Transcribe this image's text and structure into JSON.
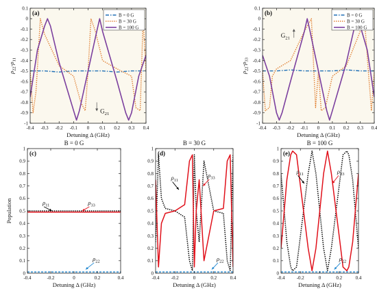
{
  "colors": {
    "b0": "#1f6fb5",
    "b30": "#e07b2a",
    "b100": "#7b3f9e",
    "rho11": "#000000",
    "rho22": "#1f87d0",
    "rho33": "#e0101a",
    "panel_bg": "#fbf8ee"
  },
  "chart_data": [
    {
      "type": "line",
      "panel_label": "(a)",
      "xlabel": "Detuning Δ (GHz)",
      "ylabel": "ρ22-ρ11",
      "xlim": [
        -0.4,
        0.4
      ],
      "ylim": [
        -1,
        0.1
      ],
      "xticks": [
        "-0.4",
        "-0.3",
        "-0.2",
        "-0.1",
        "0",
        "0.1",
        "0.2",
        "0.3",
        "0.4"
      ],
      "yticks": [
        "0.1",
        "0",
        "-0.1",
        "-0.2",
        "-0.3",
        "-0.4",
        "-0.5",
        "-0.6",
        "-0.7",
        "-0.8",
        "-0.9",
        "-1"
      ],
      "legend": [
        "B = 0 G",
        "B = 30 G",
        "B = 100 G"
      ],
      "legend_position": "top-right",
      "annotation": "G21",
      "series": [
        {
          "name": "B = 0 G",
          "x": [
            -0.4,
            -0.3,
            -0.2,
            -0.1,
            0,
            0.1,
            0.2,
            0.3,
            0.4
          ],
          "y": [
            -0.5,
            -0.5,
            -0.51,
            -0.5,
            -0.5,
            -0.5,
            -0.51,
            -0.5,
            -0.5
          ]
        },
        {
          "name": "B = 30 G",
          "x": [
            -0.4,
            -0.38,
            -0.36,
            -0.33,
            -0.3,
            -0.2,
            -0.1,
            -0.05,
            -0.02,
            0,
            0.02,
            0.05,
            0.1,
            0.2,
            0.3,
            0.33,
            0.36,
            0.38,
            0.4
          ],
          "y": [
            -0.5,
            -0.9,
            -0.7,
            0,
            -0.15,
            -0.45,
            -0.55,
            -0.8,
            -0.88,
            -0.5,
            0,
            -0.12,
            -0.4,
            -0.48,
            -0.55,
            -0.85,
            -0.88,
            0,
            -0.5
          ]
        },
        {
          "name": "B = 100 G",
          "x": [
            -0.4,
            -0.35,
            -0.3,
            -0.28,
            -0.26,
            -0.2,
            -0.1,
            -0.08,
            -0.06,
            0,
            0.06,
            0.08,
            0.1,
            0.2,
            0.26,
            0.28,
            0.3,
            0.35,
            0.4
          ],
          "y": [
            -0.75,
            -0.3,
            -0.07,
            0,
            -0.07,
            -0.42,
            -0.88,
            -0.97,
            -0.88,
            -0.5,
            -0.12,
            0,
            -0.12,
            -0.6,
            -0.9,
            -0.97,
            -0.9,
            -0.55,
            -0.35
          ]
        }
      ]
    },
    {
      "type": "line",
      "panel_label": "(b)",
      "xlabel": "Detuning Δ (GHz)",
      "ylabel": "ρ22-ρ33",
      "xlim": [
        -0.4,
        0.4
      ],
      "ylim": [
        -1,
        0.1
      ],
      "xticks": [
        "-0.4",
        "-0.3",
        "-0.2",
        "-0.1",
        "0",
        "0.1",
        "0.2",
        "0.3",
        "0.4"
      ],
      "yticks": [
        "0.1",
        "0",
        "-0.1",
        "-0.2",
        "-0.3",
        "-0.4",
        "-0.5",
        "-0.6",
        "-0.7",
        "-0.8",
        "-0.9",
        "-1"
      ],
      "legend": [
        "B = 0 G",
        "B = 30 G",
        "B = 100 G"
      ],
      "legend_position": "top-right",
      "annotation": "G21",
      "series": [
        {
          "name": "B = 0 G",
          "x": [
            -0.4,
            -0.3,
            -0.2,
            -0.1,
            0,
            0.1,
            0.2,
            0.3,
            0.4
          ],
          "y": [
            -0.5,
            -0.5,
            -0.49,
            -0.5,
            -0.5,
            -0.5,
            -0.49,
            -0.5,
            -0.5
          ]
        },
        {
          "name": "B = 30 G",
          "x": [
            -0.4,
            -0.38,
            -0.35,
            -0.33,
            -0.3,
            -0.2,
            -0.1,
            -0.05,
            -0.02,
            0,
            0.02,
            0.05,
            0.1,
            0.2,
            0.3,
            0.33,
            0.36,
            0.38,
            0.4
          ],
          "y": [
            -0.5,
            -0.88,
            -0.85,
            -0.55,
            -0.48,
            -0.4,
            -0.12,
            0,
            -0.85,
            -0.5,
            -0.88,
            -0.85,
            -0.55,
            -0.45,
            -0.12,
            0,
            -0.55,
            -0.88,
            -0.5
          ]
        },
        {
          "name": "B = 100 G",
          "x": [
            -0.4,
            -0.35,
            -0.3,
            -0.28,
            -0.26,
            -0.2,
            -0.1,
            -0.08,
            -0.06,
            0,
            0.06,
            0.08,
            0.1,
            0.2,
            0.26,
            0.28,
            0.3,
            0.35,
            0.4
          ],
          "y": [
            -0.35,
            -0.55,
            -0.9,
            -0.97,
            -0.9,
            -0.6,
            -0.12,
            0,
            -0.12,
            -0.5,
            -0.88,
            -0.97,
            -0.88,
            -0.42,
            -0.07,
            0,
            -0.07,
            -0.3,
            -0.75
          ]
        }
      ]
    },
    {
      "type": "line",
      "panel_label": "(c)",
      "title": "B = 0 G",
      "xlabel": "Detuning Δ (GHz)",
      "ylabel": "Population",
      "xlim": [
        -0.4,
        0.4
      ],
      "ylim": [
        0,
        1
      ],
      "xticks": [
        "-0.4",
        "-0.2",
        "0",
        "0.2",
        "0.4"
      ],
      "yticks": [
        "0",
        "0.1",
        "0.2",
        "0.3",
        "0.4",
        "0.5",
        "0.6",
        "0.7",
        "0.8",
        "0.9",
        "1"
      ],
      "series": [
        {
          "name": "ρ11",
          "x": [
            -0.4,
            -0.2,
            0,
            0.2,
            0.4
          ],
          "y": [
            0.5,
            0.5,
            0.5,
            0.5,
            0.5
          ]
        },
        {
          "name": "ρ22",
          "x": [
            -0.4,
            -0.2,
            0,
            0.2,
            0.4
          ],
          "y": [
            0.01,
            0.01,
            0.01,
            0.01,
            0.01
          ]
        },
        {
          "name": "ρ33",
          "x": [
            -0.4,
            -0.2,
            0,
            0.2,
            0.4
          ],
          "y": [
            0.49,
            0.49,
            0.49,
            0.49,
            0.49
          ]
        }
      ]
    },
    {
      "type": "line",
      "panel_label": "(d)",
      "title": "B = 30 G",
      "xlabel": "Detuning Δ (GHz)",
      "ylabel": "",
      "xlim": [
        -0.4,
        0.4
      ],
      "ylim": [
        0,
        1
      ],
      "xticks": [
        "-0.4",
        "-0.2",
        "0",
        "0.2",
        "0.4"
      ],
      "yticks": [
        "0",
        "0.1",
        "0.2",
        "0.3",
        "0.4",
        "0.5",
        "0.6",
        "0.7",
        "0.8",
        "0.9",
        "1"
      ],
      "series": [
        {
          "name": "ρ11",
          "x": [
            -0.4,
            -0.37,
            -0.34,
            -0.3,
            -0.2,
            -0.1,
            -0.05,
            -0.02,
            0,
            0.02,
            0.05,
            0.1,
            0.2,
            0.3,
            0.34,
            0.37,
            0.4
          ],
          "y": [
            0.25,
            0.95,
            0.6,
            0.52,
            0.5,
            0.45,
            0.1,
            0.02,
            0.95,
            0.5,
            0.25,
            0.9,
            0.5,
            0.48,
            0.1,
            0.02,
            0.95
          ]
        },
        {
          "name": "ρ22",
          "x": [
            -0.4,
            -0.2,
            0,
            0.2,
            0.4
          ],
          "y": [
            0.01,
            0.01,
            0.01,
            0.01,
            0.01
          ]
        },
        {
          "name": "ρ33",
          "x": [
            -0.4,
            -0.37,
            -0.34,
            -0.3,
            -0.2,
            -0.1,
            -0.05,
            -0.02,
            0,
            0.02,
            0.05,
            0.1,
            0.2,
            0.3,
            0.34,
            0.37,
            0.4
          ],
          "y": [
            0.75,
            0.05,
            0.4,
            0.48,
            0.5,
            0.55,
            0.9,
            0.95,
            0.05,
            0.5,
            0.75,
            0.1,
            0.5,
            0.52,
            0.9,
            0.95,
            0.05
          ]
        }
      ]
    },
    {
      "type": "line",
      "panel_label": "(e)",
      "title": "B = 100 G",
      "xlabel": "Detuning Δ (GHz)",
      "ylabel": "",
      "xlim": [
        -0.4,
        0.4
      ],
      "ylim": [
        0,
        1
      ],
      "xticks": [
        "-0.4",
        "-0.2",
        "0",
        "0.2",
        "0.4"
      ],
      "yticks": [
        "0",
        "0.1",
        "0.2",
        "0.3",
        "0.4",
        "0.5",
        "0.6",
        "0.7",
        "0.8",
        "0.9",
        "1"
      ],
      "series": [
        {
          "name": "ρ11",
          "x": [
            -0.4,
            -0.34,
            -0.3,
            -0.28,
            -0.24,
            -0.2,
            -0.12,
            -0.08,
            -0.04,
            0,
            0.04,
            0.08,
            0.12,
            0.2,
            0.24,
            0.28,
            0.3,
            0.34,
            0.4
          ],
          "y": [
            0.8,
            0.25,
            0.05,
            0.02,
            0.05,
            0.3,
            0.8,
            0.98,
            0.8,
            0.5,
            0.2,
            0.02,
            0.2,
            0.7,
            0.95,
            0.98,
            0.95,
            0.75,
            0.2
          ]
        },
        {
          "name": "ρ22",
          "x": [
            -0.4,
            -0.2,
            0,
            0.2,
            0.4
          ],
          "y": [
            0.01,
            0.01,
            0.01,
            0.01,
            0.01
          ]
        },
        {
          "name": "ρ33",
          "x": [
            -0.4,
            -0.34,
            -0.3,
            -0.28,
            -0.24,
            -0.2,
            -0.12,
            -0.08,
            -0.04,
            0,
            0.04,
            0.08,
            0.12,
            0.2,
            0.24,
            0.28,
            0.3,
            0.34,
            0.4
          ],
          "y": [
            0.2,
            0.75,
            0.95,
            0.98,
            0.95,
            0.7,
            0.2,
            0.02,
            0.2,
            0.5,
            0.8,
            0.98,
            0.8,
            0.3,
            0.05,
            0.02,
            0.05,
            0.25,
            0.8
          ]
        }
      ]
    }
  ]
}
